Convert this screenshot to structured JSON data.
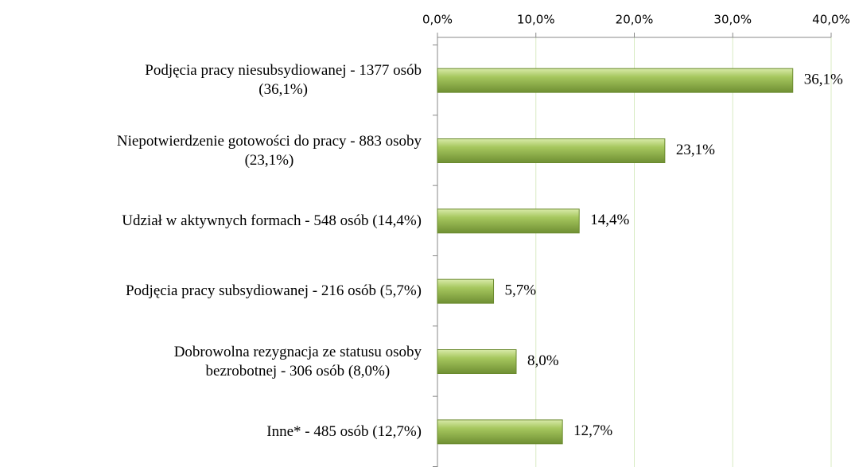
{
  "chart_data": {
    "type": "bar",
    "orientation": "horizontal",
    "categories": [
      "Podjęcia pracy niesubsydiowanej - 1377 osób\n(36,1%)",
      "Niepotwierdzenie gotowości do pracy - 883 osoby\n(23,1%)",
      "Udział w aktywnych formach - 548 osób (14,4%)",
      "Podjęcia pracy subsydiowanej - 216 osób (5,7%)",
      "Dobrowolna rezygnacja ze statusu osoby\nbezrobotnej - 306 osób (8,0%)",
      "Inne* - 485 osób (12,7%)"
    ],
    "values": [
      36.1,
      23.1,
      14.4,
      5.7,
      8.0,
      12.7
    ],
    "value_labels": [
      "36,1%",
      "23,1%",
      "14,4%",
      "5,7%",
      "8,0%",
      "12,7%"
    ],
    "color": "#9bbb59",
    "xlim": [
      0,
      40
    ],
    "xticks": [
      {
        "value": 0,
        "label": "0,0%"
      },
      {
        "value": 10,
        "label": "10,0%"
      },
      {
        "value": 20,
        "label": "20,0%"
      },
      {
        "value": 30,
        "label": "30,0%"
      },
      {
        "value": 40,
        "label": "40,0%"
      }
    ],
    "grid": true
  }
}
